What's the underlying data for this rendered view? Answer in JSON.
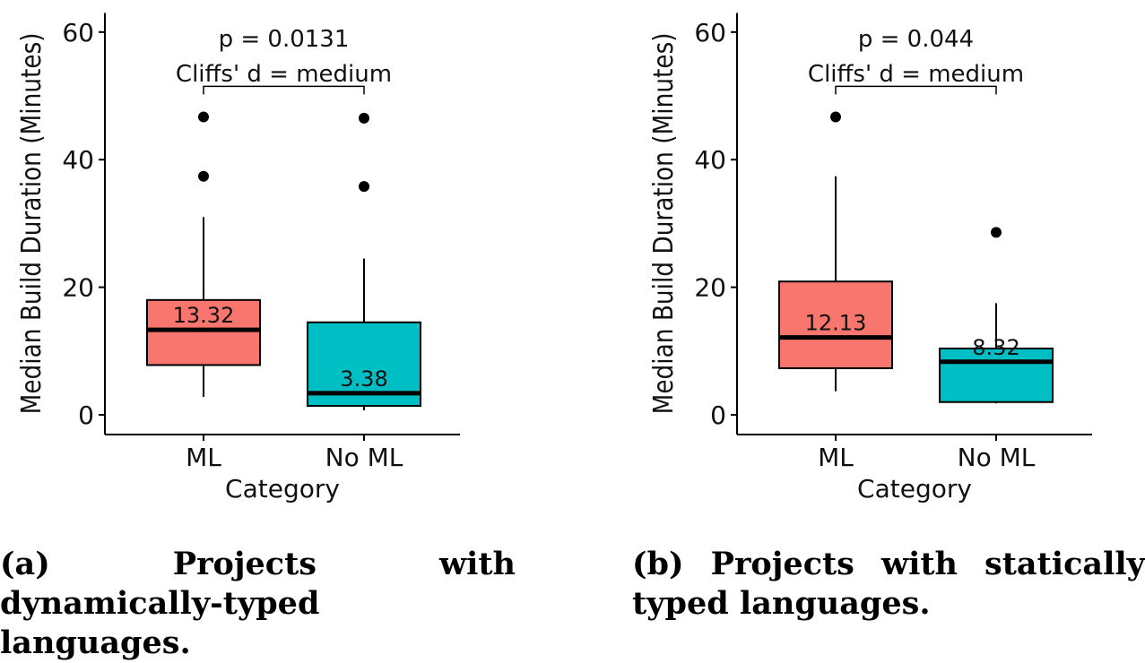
{
  "chart_data": [
    {
      "type": "boxplot",
      "xlabel": "Category",
      "ylabel": "Median Build Duration (Minutes)",
      "ylim": [
        0,
        63
      ],
      "yticks": [
        0,
        20,
        40,
        60
      ],
      "categories": [
        "ML",
        "No ML"
      ],
      "colors": [
        "#f8766d",
        "#00bfc4"
      ],
      "boxes": [
        {
          "category": "ML",
          "whisker_low": 2.8,
          "q1": 7.8,
          "median": 13.32,
          "q3": 18.0,
          "whisker_high": 31.0,
          "outliers": [
            37.4,
            46.7
          ],
          "median_label": "13.32"
        },
        {
          "category": "No ML",
          "whisker_low": 0.7,
          "q1": 1.4,
          "median": 3.38,
          "q3": 14.5,
          "whisker_high": 24.5,
          "outliers": [
            35.8,
            46.5
          ],
          "median_label": "3.38"
        }
      ],
      "annotation": {
        "p_text": "p = 0.0131",
        "effect_text": "Cliffs' d = medium",
        "bracket_y": 51.5
      },
      "caption": "(a) Projects with dynamically-typed languages."
    },
    {
      "type": "boxplot",
      "xlabel": "Category",
      "ylabel": "Median Build Duration (Minutes)",
      "ylim": [
        0,
        63
      ],
      "yticks": [
        0,
        20,
        40,
        60
      ],
      "categories": [
        "ML",
        "No ML"
      ],
      "colors": [
        "#f8766d",
        "#00bfc4"
      ],
      "boxes": [
        {
          "category": "ML",
          "whisker_low": 3.7,
          "q1": 7.3,
          "median": 12.13,
          "q3": 20.9,
          "whisker_high": 37.4,
          "outliers": [
            46.7
          ],
          "median_label": "12.13"
        },
        {
          "category": "No ML",
          "whisker_low": 1.8,
          "q1": 2.0,
          "median": 8.32,
          "q3": 10.4,
          "whisker_high": 17.5,
          "outliers": [
            28.6
          ],
          "median_label": "8.32"
        }
      ],
      "annotation": {
        "p_text": "p = 0.044",
        "effect_text": "Cliffs' d = medium",
        "bracket_y": 51.5
      },
      "caption": "(b) Projects with statically typed languages."
    }
  ]
}
